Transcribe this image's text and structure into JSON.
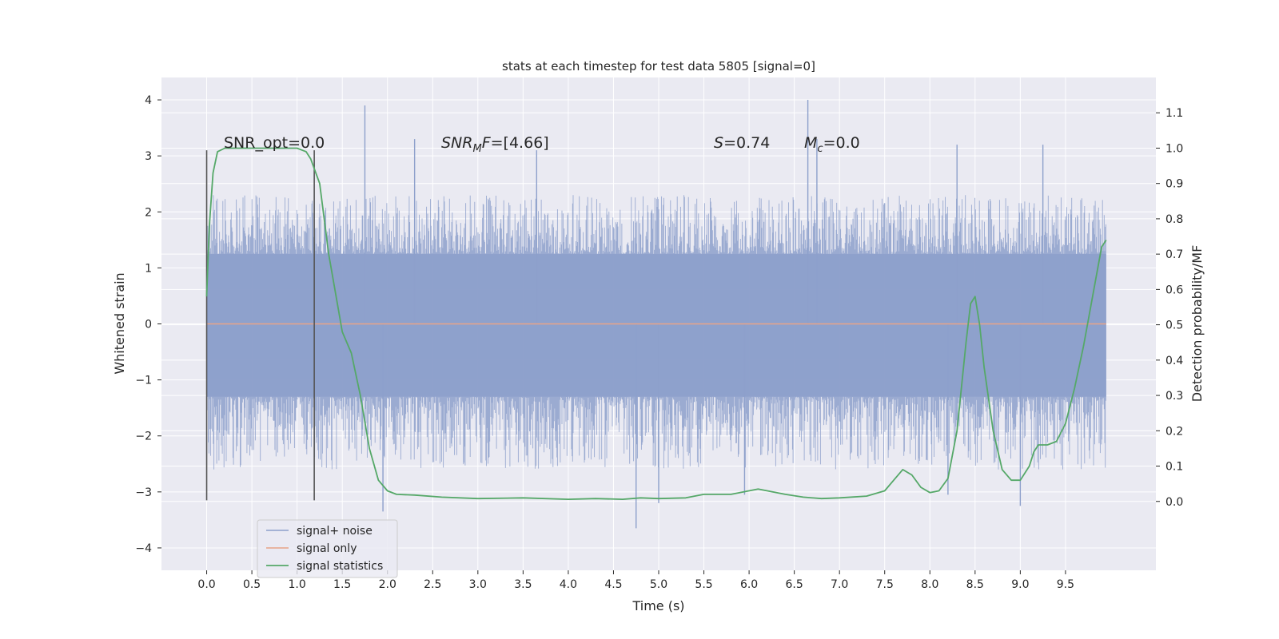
{
  "chart_data": {
    "type": "line",
    "title": "stats at each timestep for test data 5805 [signal=0]",
    "xlabel": "Time (s)",
    "ylabel": "Whitened strain",
    "y2label": "Detection probability/MF",
    "xlim": [
      -0.5,
      10.5
    ],
    "ylim": [
      -4.4,
      4.4
    ],
    "y2lim": [
      -0.195,
      1.2
    ],
    "x_ticks": [
      0.0,
      0.5,
      1.0,
      1.5,
      2.0,
      2.5,
      3.0,
      3.5,
      4.0,
      4.5,
      5.0,
      5.5,
      6.0,
      6.5,
      7.0,
      7.5,
      8.0,
      8.5,
      9.0,
      9.5
    ],
    "y_ticks": [
      -4,
      -3,
      -2,
      -1,
      0,
      1,
      2,
      3,
      4
    ],
    "y_tick_labels": [
      "−4",
      "−3",
      "−2",
      "−1",
      "0",
      "1",
      "2",
      "3",
      "4"
    ],
    "y2_ticks": [
      0.0,
      0.1,
      0.2,
      0.3,
      0.4,
      0.5,
      0.6,
      0.7,
      0.8,
      0.9,
      1.0,
      1.1
    ],
    "grid": true,
    "legend_position": "lower-left",
    "annotations": {
      "snr_opt": "SNR_opt=0.0",
      "snr_mf_sym": "SNR",
      "snr_mf_sub": "M",
      "snr_mf_f": "F",
      "snr_mf_val": "=[4.66]",
      "s_sym": "S",
      "s_val": "=0.74",
      "mc_sym": "M",
      "mc_sub": "c",
      "mc_val": "=0.0"
    },
    "vlines": [
      0.0,
      1.19
    ],
    "noise": {
      "t_start": 0.0,
      "t_end": 9.95,
      "lower_band": -1.3,
      "upper_band": 1.25,
      "typical_min": -2.6,
      "typical_max": 2.3,
      "spikes_up": [
        [
          1.75,
          3.9
        ],
        [
          6.65,
          4.0
        ],
        [
          6.75,
          3.3
        ],
        [
          8.3,
          3.2
        ],
        [
          9.25,
          3.2
        ],
        [
          2.3,
          3.3
        ],
        [
          3.65,
          3.1
        ]
      ],
      "spikes_down": [
        [
          4.75,
          -3.65
        ],
        [
          1.95,
          -3.35
        ],
        [
          9.0,
          -3.25
        ],
        [
          5.0,
          -3.2
        ],
        [
          8.2,
          -3.05
        ],
        [
          5.95,
          -3.05
        ]
      ]
    },
    "series": [
      {
        "name": "signal+ noise",
        "color": "#8da0cb",
        "axis": "left",
        "kind": "noise"
      },
      {
        "name": "signal only",
        "color": "#e8a387",
        "axis": "left",
        "x": [
          0.0,
          9.95
        ],
        "y": [
          0.0,
          0.0
        ]
      },
      {
        "name": "signal statistics",
        "color": "#55a868",
        "axis": "right",
        "x": [
          0.0,
          0.03,
          0.07,
          0.12,
          0.2,
          0.3,
          0.5,
          0.8,
          1.0,
          1.1,
          1.15,
          1.25,
          1.35,
          1.5,
          1.6,
          1.7,
          1.8,
          1.9,
          2.0,
          2.1,
          2.3,
          2.6,
          3.0,
          3.5,
          4.0,
          4.3,
          4.6,
          4.8,
          5.0,
          5.3,
          5.5,
          5.8,
          6.1,
          6.4,
          6.6,
          6.8,
          7.0,
          7.3,
          7.5,
          7.6,
          7.7,
          7.8,
          7.9,
          8.0,
          8.1,
          8.2,
          8.3,
          8.4,
          8.45,
          8.5,
          8.55,
          8.6,
          8.7,
          8.8,
          8.9,
          9.0,
          9.1,
          9.15,
          9.2,
          9.3,
          9.4,
          9.5,
          9.6,
          9.7,
          9.8,
          9.9,
          9.95
        ],
        "y": [
          0.58,
          0.78,
          0.93,
          0.99,
          1.0,
          1.0,
          1.0,
          1.0,
          1.0,
          0.99,
          0.97,
          0.9,
          0.7,
          0.48,
          0.42,
          0.3,
          0.15,
          0.06,
          0.03,
          0.02,
          0.018,
          0.012,
          0.008,
          0.01,
          0.006,
          0.008,
          0.006,
          0.01,
          0.008,
          0.01,
          0.02,
          0.02,
          0.035,
          0.02,
          0.012,
          0.008,
          0.01,
          0.015,
          0.03,
          0.06,
          0.09,
          0.075,
          0.04,
          0.025,
          0.03,
          0.065,
          0.2,
          0.45,
          0.56,
          0.58,
          0.5,
          0.38,
          0.2,
          0.09,
          0.06,
          0.06,
          0.1,
          0.14,
          0.16,
          0.16,
          0.17,
          0.22,
          0.32,
          0.44,
          0.58,
          0.72,
          0.74
        ]
      }
    ]
  }
}
